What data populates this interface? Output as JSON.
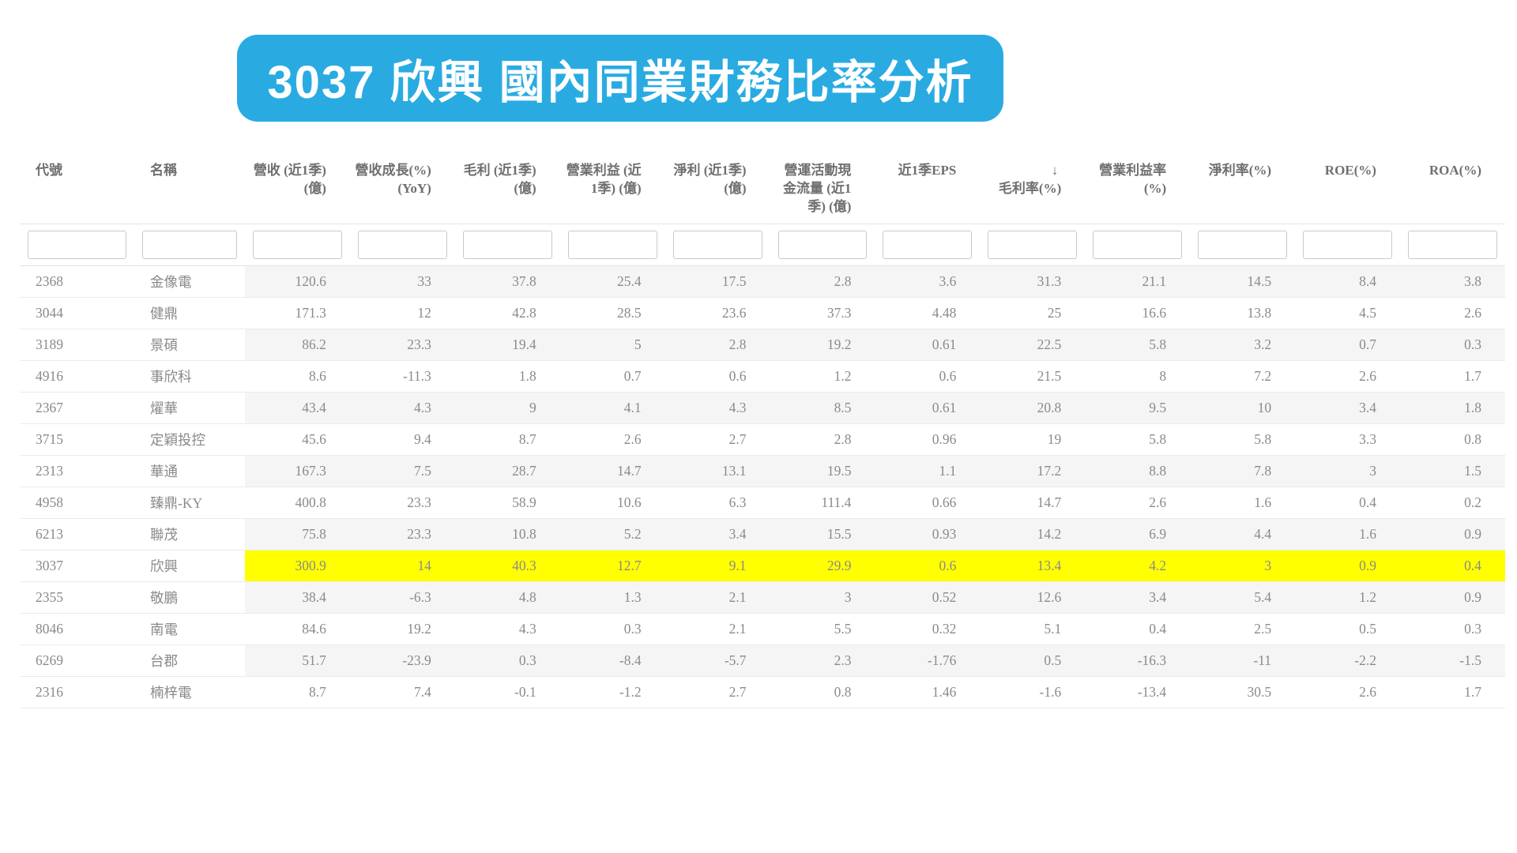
{
  "page_title": "3037 欣興 國內同業財務比率分析",
  "colors": {
    "banner": "#29abe2",
    "banner_text": "#ffffff",
    "highlight_row": "#ffff00",
    "stripe_row": "#f5f5f5",
    "header_text": "#6f6f6f",
    "body_text": "#8a8a8a",
    "row_border": "#ebebeb",
    "input_border": "#c9c9c9"
  },
  "table": {
    "sort": {
      "column": "gross_margin",
      "direction": "descending",
      "icon": "↓"
    },
    "filter_placeholder": "",
    "columns": [
      {
        "key": "code",
        "align": "left",
        "lines": [
          "代號"
        ]
      },
      {
        "key": "name",
        "align": "left",
        "lines": [
          "名稱"
        ]
      },
      {
        "key": "revenue",
        "align": "right",
        "lines": [
          "營收 (近1季)",
          "(億)"
        ]
      },
      {
        "key": "revenue_growth",
        "align": "right",
        "lines": [
          "營收成長(%)",
          "(YoY)"
        ]
      },
      {
        "key": "gross_profit",
        "align": "right",
        "lines": [
          "毛利 (近1季)",
          "(億)"
        ]
      },
      {
        "key": "operating_income",
        "align": "right",
        "lines": [
          "營業利益 (近",
          "1季) (億)"
        ]
      },
      {
        "key": "net_income",
        "align": "right",
        "lines": [
          "淨利 (近1季)",
          "(億)"
        ]
      },
      {
        "key": "operating_cash_flow",
        "align": "right",
        "lines": [
          "營運活動現",
          "金流量 (近1",
          "季) (億)"
        ]
      },
      {
        "key": "eps",
        "align": "right",
        "lines": [
          "近1季EPS"
        ]
      },
      {
        "key": "gross_margin",
        "align": "right",
        "lines": [
          "毛利率(%)"
        ],
        "sort_icon": "↓"
      },
      {
        "key": "operating_margin",
        "align": "right",
        "lines": [
          "營業利益率",
          "(%)"
        ]
      },
      {
        "key": "net_margin",
        "align": "right",
        "lines": [
          "淨利率(%)"
        ]
      },
      {
        "key": "roe",
        "align": "right",
        "lines": [
          "ROE(%)"
        ]
      },
      {
        "key": "roa",
        "align": "right",
        "lines": [
          "ROA(%)"
        ]
      }
    ],
    "rows": [
      {
        "code": "2368",
        "name": "金像電",
        "highlighted": false,
        "values": [
          "120.6",
          "33",
          "37.8",
          "25.4",
          "17.5",
          "2.8",
          "3.6",
          "31.3",
          "21.1",
          "14.5",
          "8.4",
          "3.8"
        ]
      },
      {
        "code": "3044",
        "name": "健鼎",
        "highlighted": false,
        "values": [
          "171.3",
          "12",
          "42.8",
          "28.5",
          "23.6",
          "37.3",
          "4.48",
          "25",
          "16.6",
          "13.8",
          "4.5",
          "2.6"
        ]
      },
      {
        "code": "3189",
        "name": "景碩",
        "highlighted": false,
        "values": [
          "86.2",
          "23.3",
          "19.4",
          "5",
          "2.8",
          "19.2",
          "0.61",
          "22.5",
          "5.8",
          "3.2",
          "0.7",
          "0.3"
        ]
      },
      {
        "code": "4916",
        "name": "事欣科",
        "highlighted": false,
        "values": [
          "8.6",
          "-11.3",
          "1.8",
          "0.7",
          "0.6",
          "1.2",
          "0.6",
          "21.5",
          "8",
          "7.2",
          "2.6",
          "1.7"
        ]
      },
      {
        "code": "2367",
        "name": "燿華",
        "highlighted": false,
        "values": [
          "43.4",
          "4.3",
          "9",
          "4.1",
          "4.3",
          "8.5",
          "0.61",
          "20.8",
          "9.5",
          "10",
          "3.4",
          "1.8"
        ]
      },
      {
        "code": "3715",
        "name": "定穎投控",
        "highlighted": false,
        "values": [
          "45.6",
          "9.4",
          "8.7",
          "2.6",
          "2.7",
          "2.8",
          "0.96",
          "19",
          "5.8",
          "5.8",
          "3.3",
          "0.8"
        ]
      },
      {
        "code": "2313",
        "name": "華通",
        "highlighted": false,
        "values": [
          "167.3",
          "7.5",
          "28.7",
          "14.7",
          "13.1",
          "19.5",
          "1.1",
          "17.2",
          "8.8",
          "7.8",
          "3",
          "1.5"
        ]
      },
      {
        "code": "4958",
        "name": "臻鼎-KY",
        "highlighted": false,
        "values": [
          "400.8",
          "23.3",
          "58.9",
          "10.6",
          "6.3",
          "111.4",
          "0.66",
          "14.7",
          "2.6",
          "1.6",
          "0.4",
          "0.2"
        ]
      },
      {
        "code": "6213",
        "name": "聯茂",
        "highlighted": false,
        "values": [
          "75.8",
          "23.3",
          "10.8",
          "5.2",
          "3.4",
          "15.5",
          "0.93",
          "14.2",
          "6.9",
          "4.4",
          "1.6",
          "0.9"
        ]
      },
      {
        "code": "3037",
        "name": "欣興",
        "highlighted": true,
        "values": [
          "300.9",
          "14",
          "40.3",
          "12.7",
          "9.1",
          "29.9",
          "0.6",
          "13.4",
          "4.2",
          "3",
          "0.9",
          "0.4"
        ]
      },
      {
        "code": "2355",
        "name": "敬鵬",
        "highlighted": false,
        "values": [
          "38.4",
          "-6.3",
          "4.8",
          "1.3",
          "2.1",
          "3",
          "0.52",
          "12.6",
          "3.4",
          "5.4",
          "1.2",
          "0.9"
        ]
      },
      {
        "code": "8046",
        "name": "南電",
        "highlighted": false,
        "values": [
          "84.6",
          "19.2",
          "4.3",
          "0.3",
          "2.1",
          "5.5",
          "0.32",
          "5.1",
          "0.4",
          "2.5",
          "0.5",
          "0.3"
        ]
      },
      {
        "code": "6269",
        "name": "台郡",
        "highlighted": false,
        "values": [
          "51.7",
          "-23.9",
          "0.3",
          "-8.4",
          "-5.7",
          "2.3",
          "-1.76",
          "0.5",
          "-16.3",
          "-11",
          "-2.2",
          "-1.5"
        ]
      },
      {
        "code": "2316",
        "name": "楠梓電",
        "highlighted": false,
        "values": [
          "8.7",
          "7.4",
          "-0.1",
          "-1.2",
          "2.7",
          "0.8",
          "1.46",
          "-1.6",
          "-13.4",
          "30.5",
          "2.6",
          "1.7"
        ]
      }
    ]
  }
}
